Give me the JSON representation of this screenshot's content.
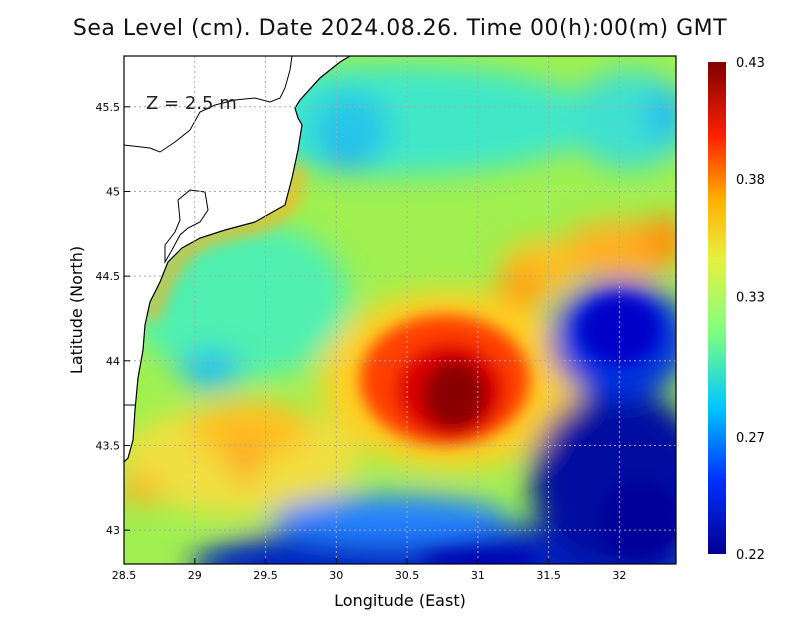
{
  "title": "Sea Level (cm). Date 2024.08.26. Time 00(h):00(m) GMT",
  "depth_label": "Z = 2.5 m",
  "x_axis": {
    "label": "Longitude (East)",
    "range": [
      28.5,
      32.4
    ],
    "ticks": [
      {
        "value": 28.5,
        "label": "28.5"
      },
      {
        "value": 29,
        "label": "29"
      },
      {
        "value": 29.5,
        "label": "29.5"
      },
      {
        "value": 30,
        "label": "30"
      },
      {
        "value": 30.5,
        "label": "30.5"
      },
      {
        "value": 31,
        "label": "31"
      },
      {
        "value": 31.5,
        "label": "31.5"
      },
      {
        "value": 32,
        "label": "32"
      }
    ]
  },
  "y_axis": {
    "label": "Latitude (North)",
    "range": [
      42.8,
      45.8
    ],
    "ticks": [
      {
        "value": 43,
        "label": "43"
      },
      {
        "value": 43.5,
        "label": "43.5"
      },
      {
        "value": 44,
        "label": "44"
      },
      {
        "value": 44.5,
        "label": "44.5"
      },
      {
        "value": 45,
        "label": "45"
      },
      {
        "value": 45.5,
        "label": "45.5"
      }
    ]
  },
  "colorbar": {
    "min": 0.22,
    "max": 0.43,
    "labels": [
      "0.43",
      "0.38",
      "0.33",
      "0.27",
      "0.22"
    ],
    "label_values": [
      0.43,
      0.38,
      0.33,
      0.27,
      0.22
    ]
  },
  "colors": {
    "low": "#00008f",
    "mid_low": "#00c8ff",
    "mid": "#7fff7f",
    "mid_high": "#ffd700",
    "high": "#ff2000",
    "max": "#7f0000",
    "land": "#ffffff",
    "coastline": "#000000",
    "grid": "#bbbbbb"
  },
  "map_features": {
    "grid": true,
    "gridline_style": "dotted",
    "land_color": "white",
    "coastline": "western Black Sea coast (Romania/Bulgaria)"
  }
}
